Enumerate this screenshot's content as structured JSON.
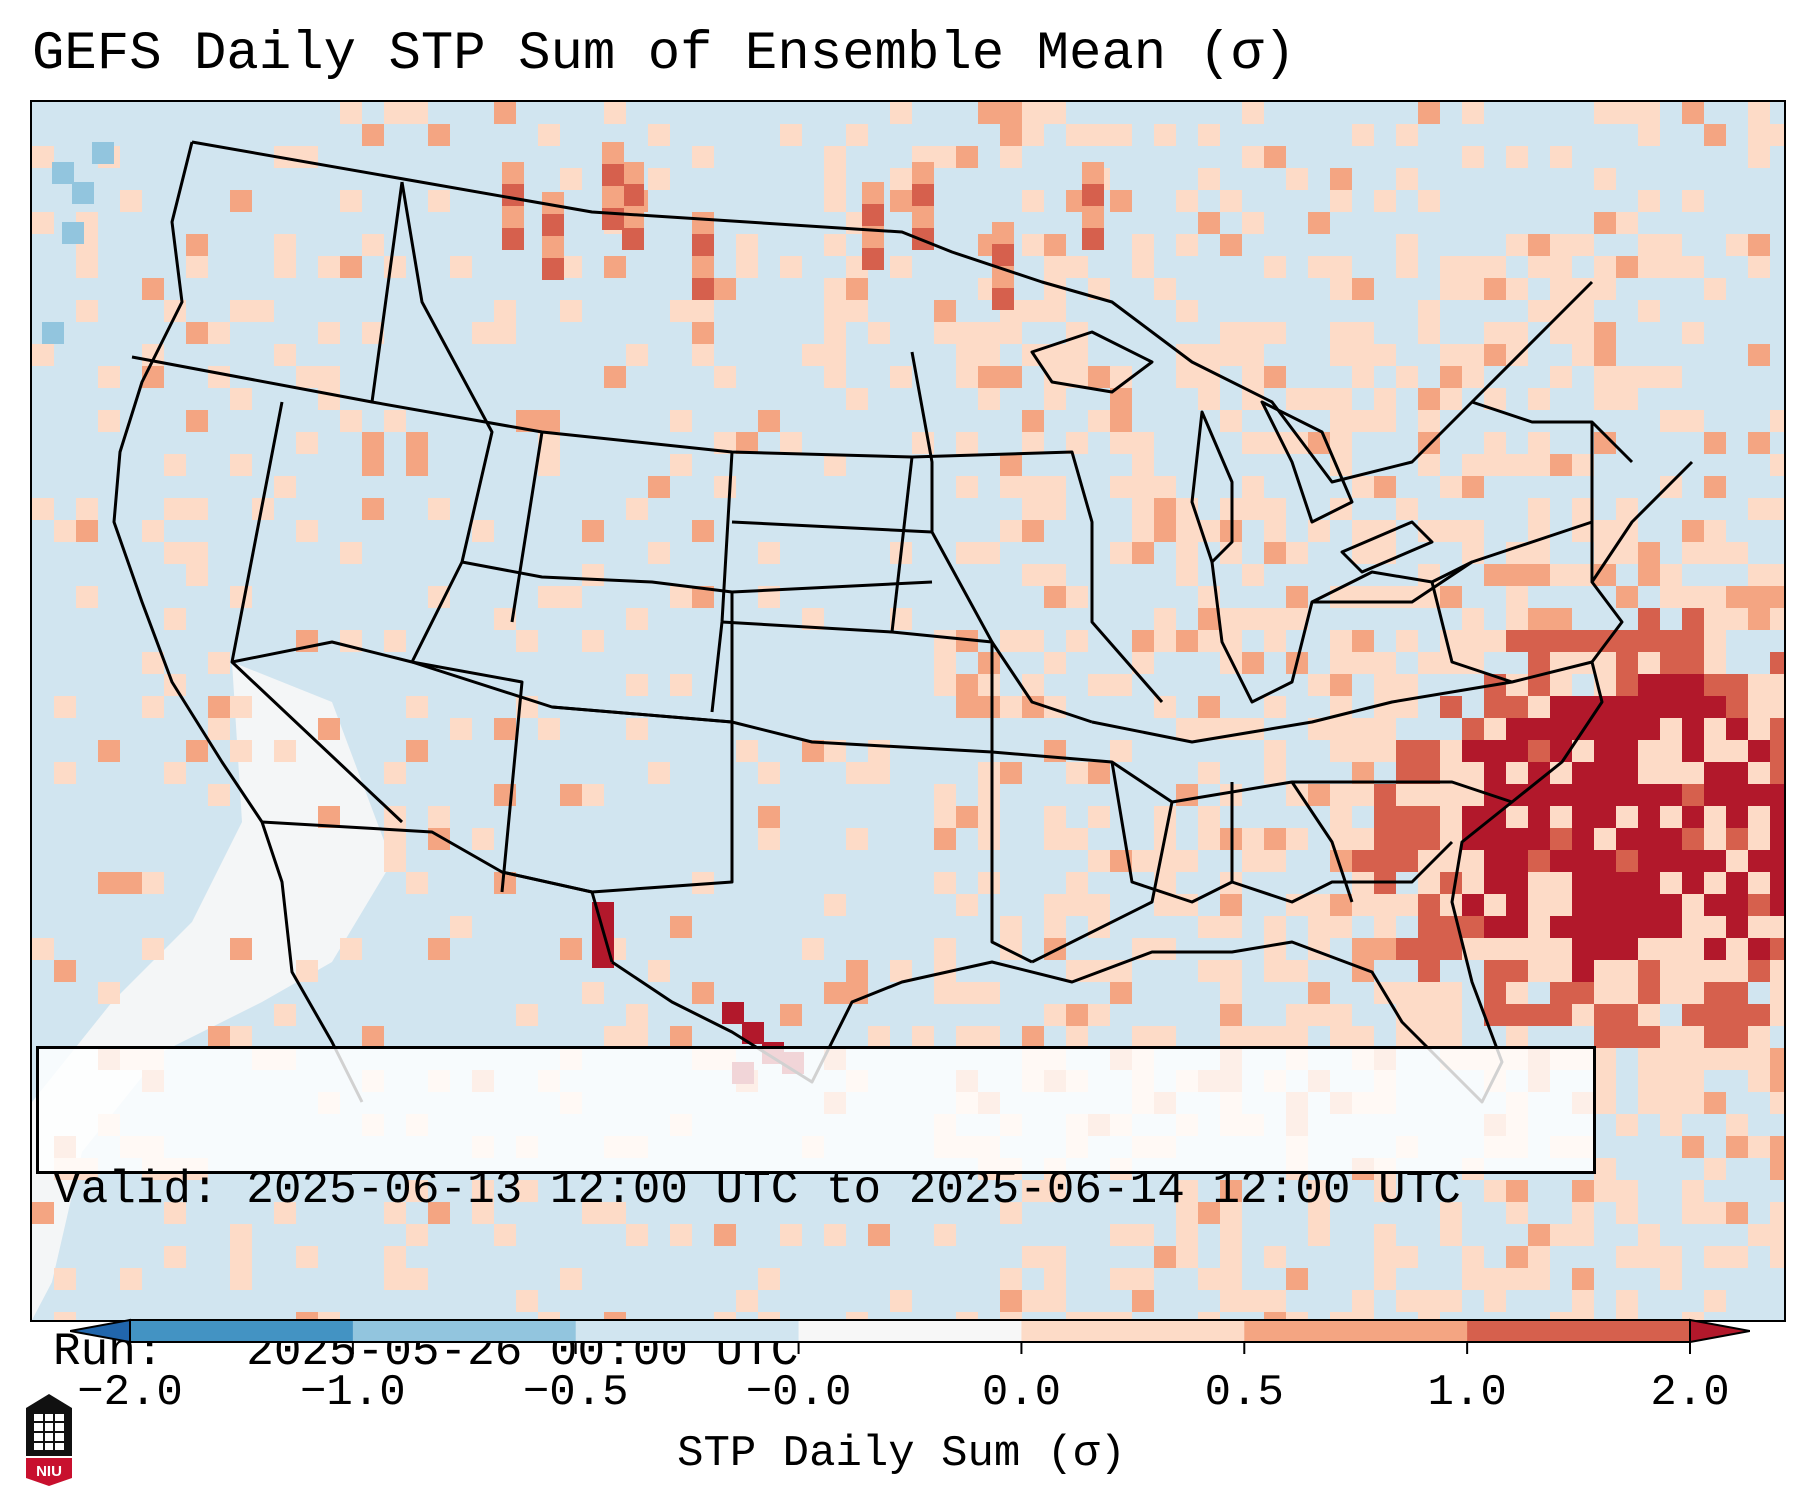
{
  "title": "GEFS Daily STP Sum of Ensemble Mean (σ)",
  "info": {
    "valid_label": "Valid:",
    "valid_value": "2025-06-13 12:00 UTC to 2025-06-14 12:00 UTC",
    "run_label": "Run:",
    "run_value": "2025-05-26 00:00 UTC"
  },
  "colorbar": {
    "label": "STP Daily Sum (σ)",
    "ticks": [
      "−2.0",
      "−1.0",
      "−0.5",
      "−0.0",
      "0.0",
      "0.5",
      "1.0",
      "2.0"
    ],
    "colors": [
      "#2166ac",
      "#4393c3",
      "#92c5de",
      "#d1e5f0",
      "#f7f7f7",
      "#fddbc7",
      "#f4a582",
      "#d6604d",
      "#b2182b"
    ]
  },
  "logo": {
    "text": "NIU",
    "icon": "university-logo-icon"
  },
  "map": {
    "ocean_color": "#d1e5f0",
    "dominant_anomaly_region": "southeast-us-and-western-atlantic"
  }
}
